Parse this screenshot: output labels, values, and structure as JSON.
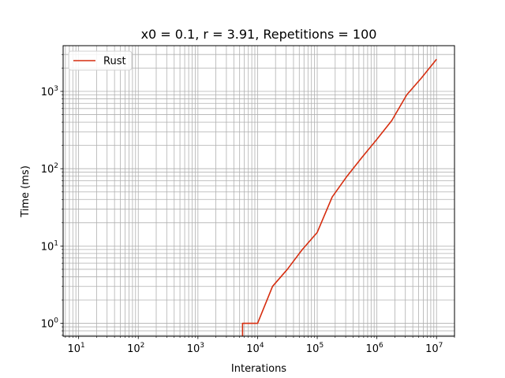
{
  "chart_data": {
    "type": "line",
    "title": "x0 = 0.1, r = 3.91, Repetitions = 100",
    "xlabel": "Interations",
    "ylabel": "Time (ms)",
    "xscale": "log",
    "yscale": "log",
    "xlim": [
      5.5,
      20000000
    ],
    "ylim": [
      0.68,
      3900
    ],
    "grid": "on (major and minor)",
    "legend_position": "top-left",
    "x_ticks": [
      {
        "base": "10",
        "exp": "1"
      },
      {
        "base": "10",
        "exp": "2"
      },
      {
        "base": "10",
        "exp": "3"
      },
      {
        "base": "10",
        "exp": "4"
      },
      {
        "base": "10",
        "exp": "5"
      },
      {
        "base": "10",
        "exp": "6"
      },
      {
        "base": "10",
        "exp": "7"
      }
    ],
    "y_ticks": [
      {
        "base": "10",
        "exp": "0"
      },
      {
        "base": "10",
        "exp": "1"
      },
      {
        "base": "10",
        "exp": "2"
      },
      {
        "base": "10",
        "exp": "3"
      }
    ],
    "series": [
      {
        "name": "Rust",
        "color": "#d62d0f",
        "x": [
          5600,
          5600,
          10000,
          17800,
          31600,
          56200,
          100000,
          178000,
          316000,
          562000,
          1000000,
          1780000,
          3160000,
          5620000,
          10000000
        ],
        "y": [
          0.68,
          1,
          1,
          3,
          5,
          9,
          15,
          43,
          80,
          140,
          240,
          420,
          900,
          1500,
          2600
        ]
      }
    ]
  }
}
